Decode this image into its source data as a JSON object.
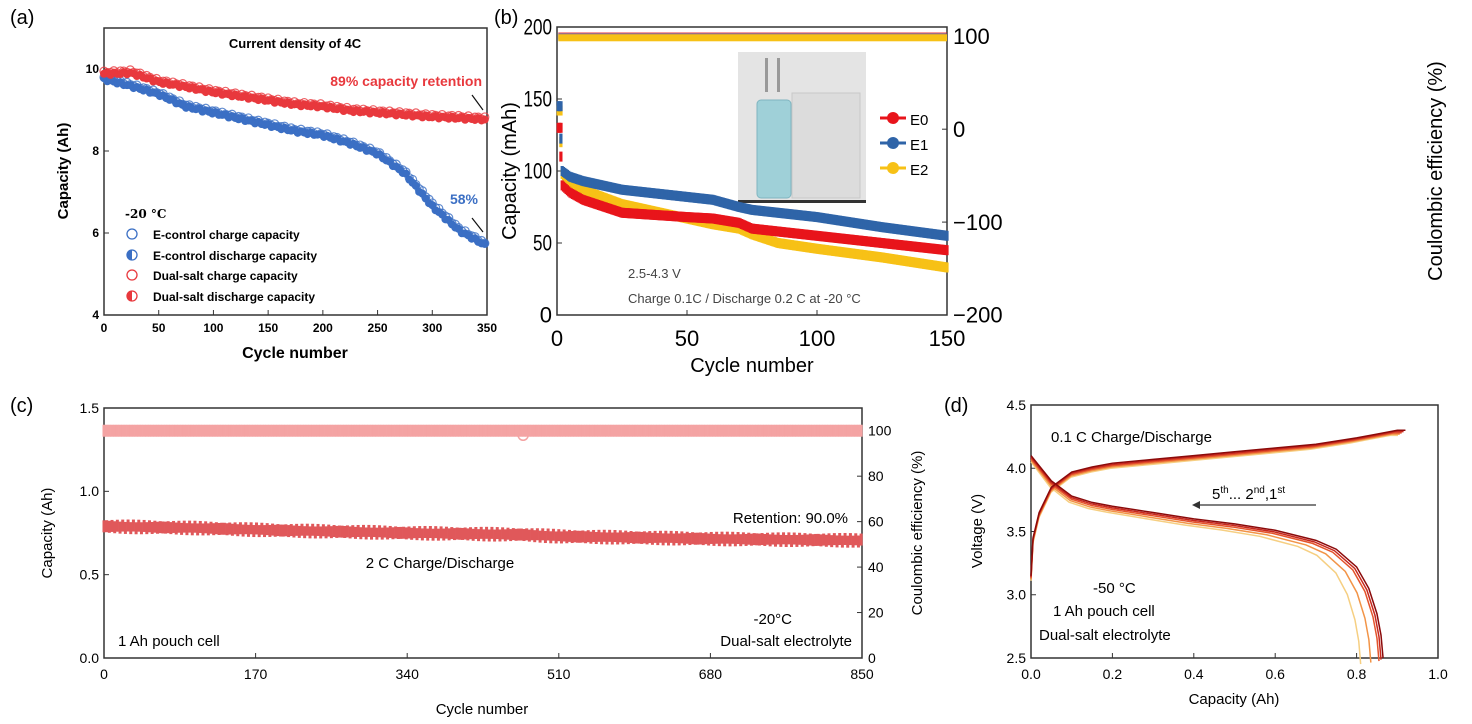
{
  "panel_labels": {
    "a": "(a)",
    "b": "(b)",
    "c": "(c)",
    "d": "(d)"
  },
  "chart_data": [
    {
      "id": "a",
      "type": "scatter",
      "title": "Current density of 4C",
      "xlabel": "Cycle number",
      "ylabel": "Capacity (Ah)",
      "xlim": [
        0,
        350
      ],
      "ylim": [
        4,
        11
      ],
      "xticks": [
        0,
        50,
        100,
        150,
        200,
        250,
        300,
        350
      ],
      "yticks": [
        4,
        6,
        8,
        10
      ],
      "legend_title": "-20 °C",
      "legend_position": "bottom-left",
      "annotations": {
        "dual": "89% capacity retention",
        "control": "58%"
      },
      "colors": {
        "control": "#3b6fc4",
        "dual": "#e8383d"
      },
      "series": [
        {
          "name": "E-control charge capacity",
          "marker": "open-circle",
          "group": "control",
          "x": [
            0,
            25,
            50,
            75,
            100,
            125,
            150,
            175,
            200,
            225,
            250,
            275,
            300,
            325,
            350
          ],
          "y": [
            9.8,
            9.62,
            9.42,
            9.12,
            8.97,
            8.82,
            8.67,
            8.52,
            8.42,
            8.22,
            7.97,
            7.5,
            6.72,
            6.1,
            5.72
          ]
        },
        {
          "name": "E-control discharge capacity",
          "marker": "half-circle",
          "group": "control",
          "x": [
            0,
            25,
            50,
            75,
            100,
            125,
            150,
            175,
            200,
            225,
            250,
            275,
            300,
            325,
            350
          ],
          "y": [
            9.75,
            9.58,
            9.38,
            9.08,
            8.93,
            8.78,
            8.63,
            8.48,
            8.38,
            8.18,
            7.93,
            7.45,
            6.65,
            6.05,
            5.68
          ]
        },
        {
          "name": "Dual-salt charge capacity",
          "marker": "open-circle",
          "group": "dual",
          "x": [
            0,
            25,
            50,
            75,
            100,
            125,
            150,
            175,
            200,
            225,
            250,
            275,
            300,
            325,
            350
          ],
          "y": [
            9.92,
            9.95,
            9.72,
            9.6,
            9.47,
            9.37,
            9.27,
            9.17,
            9.12,
            9.02,
            8.97,
            8.92,
            8.87,
            8.84,
            8.8
          ]
        },
        {
          "name": "Dual-salt discharge capacity",
          "marker": "half-circle",
          "group": "dual",
          "x": [
            0,
            25,
            50,
            75,
            100,
            125,
            150,
            175,
            200,
            225,
            250,
            275,
            300,
            325,
            350
          ],
          "y": [
            9.88,
            9.9,
            9.68,
            9.56,
            9.43,
            9.33,
            9.23,
            9.13,
            9.08,
            8.98,
            8.93,
            8.88,
            8.83,
            8.8,
            8.76
          ]
        }
      ]
    },
    {
      "id": "b",
      "type": "scatter",
      "xlabel": "Cycle number",
      "ylabel": "Capacity (mAh)",
      "y2label": "Coulombic efficiency (%)",
      "xlim": [
        0,
        150
      ],
      "ylim": [
        0,
        200
      ],
      "y2lim": [
        -200,
        110
      ],
      "xticks": [
        0,
        50,
        100,
        150
      ],
      "yticks": [
        0,
        50,
        100,
        150,
        200
      ],
      "y2ticks": [
        -200,
        -100,
        0,
        100
      ],
      "legend_position": "right-middle",
      "annotations": {
        "voltage": "2.5-4.3 V",
        "condition": "Charge 0.1C / Discharge 0.2 C at -20 °C"
      },
      "inset": "photo of pouch cell",
      "series": [
        {
          "name": "E0",
          "color": "#e8141b",
          "x": [
            1,
            2,
            5,
            10,
            25,
            50,
            60,
            70,
            75,
            100,
            125,
            150
          ],
          "y": [
            130,
            90,
            85,
            80,
            71,
            68,
            67,
            64,
            60,
            55,
            50,
            45
          ],
          "ce": 100
        },
        {
          "name": "E1",
          "color": "#2f64a8",
          "x": [
            1,
            2,
            5,
            10,
            25,
            50,
            60,
            70,
            75,
            100,
            125,
            150
          ],
          "y": [
            145,
            100,
            96,
            93,
            87,
            82,
            80,
            75,
            73,
            68,
            61,
            55
          ],
          "ce": 100
        },
        {
          "name": "E2",
          "color": "#f7c116",
          "x": [
            1,
            2,
            5,
            10,
            25,
            50,
            60,
            70,
            75,
            85,
            100,
            125,
            150
          ],
          "y": [
            142,
            98,
            92,
            87,
            77,
            67,
            63,
            60,
            56,
            50,
            46,
            40,
            33
          ],
          "ce": 100
        }
      ]
    },
    {
      "id": "c",
      "type": "scatter",
      "xlabel": "Cycle number",
      "ylabel": "Capacity (Ah)",
      "y2label": "Coulombic efficiency (%)",
      "xlim": [
        0,
        850
      ],
      "ylim": [
        0,
        1.5
      ],
      "y2lim": [
        0,
        110
      ],
      "xticks": [
        0,
        170,
        340,
        510,
        680,
        850
      ],
      "yticks": [
        0.0,
        0.5,
        1.0,
        1.5
      ],
      "y2ticks": [
        0,
        20,
        40,
        60,
        80,
        100
      ],
      "annotations": {
        "retention": "Retention: 90.0%",
        "rate": "2 C Charge/Discharge",
        "cell": "1 Ah pouch cell",
        "temp": "-20°C",
        "electrolyte": "Dual-salt electrolyte"
      },
      "colors": {
        "capacity": "#e0585a",
        "ce": "#f4a3a3"
      },
      "capacity": {
        "x": [
          0,
          100,
          200,
          340,
          470,
          510,
          680,
          850
        ],
        "y": [
          0.79,
          0.78,
          0.765,
          0.75,
          0.74,
          0.73,
          0.715,
          0.705
        ]
      },
      "ce": {
        "x": [
          0,
          470,
          850
        ],
        "y": [
          100,
          100,
          100
        ],
        "outlier": {
          "x": 470,
          "y": 98
        }
      }
    },
    {
      "id": "d",
      "type": "line",
      "xlabel": "Capacity (Ah)",
      "ylabel": "Voltage (V)",
      "xlim": [
        0.0,
        1.0
      ],
      "ylim": [
        2.5,
        4.5
      ],
      "xticks": [
        "0.0",
        "0.2",
        "0.4",
        "0.6",
        "0.8",
        "1.0"
      ],
      "yticks": [
        "2.5",
        "3.0",
        "3.5",
        "4.0",
        "4.5"
      ],
      "annotations": {
        "rate": "0.1 C Charge/Discharge",
        "temp": "-50 °C",
        "cell": "1 Ah pouch cell",
        "electrolyte": "Dual-salt electrolyte",
        "cycles_5": "5",
        "cycles_5_sup": "th",
        "cycles_mid": "... 2",
        "cycles_2_sup": "nd",
        "cycles_1": ",1",
        "cycles_1_sup": "st"
      },
      "charge": {
        "x": [
          0,
          0.005,
          0.02,
          0.05,
          0.1,
          0.15,
          0.2,
          0.3,
          0.4,
          0.5,
          0.6,
          0.7,
          0.8,
          0.85,
          0.9,
          0.92
        ],
        "y": [
          3.15,
          3.45,
          3.65,
          3.85,
          3.97,
          4.01,
          4.04,
          4.07,
          4.1,
          4.13,
          4.16,
          4.19,
          4.24,
          4.27,
          4.3,
          4.3
        ]
      },
      "discharge_shape": {
        "x": [
          0,
          0.02,
          0.05,
          0.1,
          0.15,
          0.2,
          0.3,
          0.4,
          0.5,
          0.6,
          0.7,
          0.75,
          0.8,
          0.83,
          0.85,
          0.86,
          0.865
        ],
        "y": [
          4.1,
          4.02,
          3.9,
          3.78,
          3.73,
          3.7,
          3.65,
          3.6,
          3.56,
          3.51,
          3.43,
          3.36,
          3.22,
          3.05,
          2.85,
          2.68,
          2.5
        ]
      },
      "cycles": [
        {
          "name": "1st",
          "end": 0.865,
          "color": "#8b0a0a"
        },
        {
          "name": "2nd",
          "end": 0.86,
          "color": "#c8281e"
        },
        {
          "name": "3rd",
          "end": 0.855,
          "color": "#e4542c"
        },
        {
          "name": "4th",
          "end": 0.835,
          "color": "#f29447"
        },
        {
          "name": "5th",
          "end": 0.81,
          "color": "#f6cf82"
        }
      ]
    }
  ]
}
